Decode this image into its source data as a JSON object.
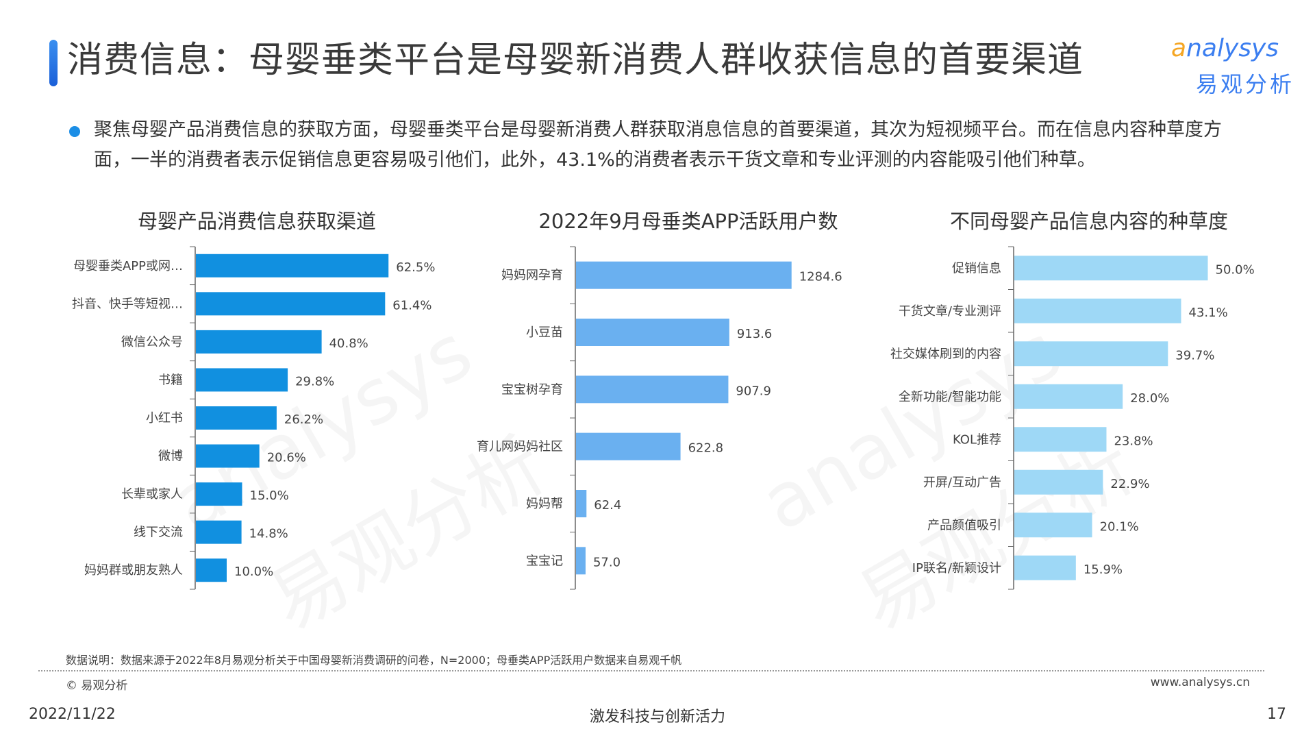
{
  "page": {
    "title": "消费信息：母婴垂类平台是母婴新消费人群收获信息的首要渠道",
    "summary": "聚焦母婴产品消费信息的获取方面，母婴垂类平台是母婴新消费人群获取消息信息的首要渠道，其次为短视频平台。而在信息内容种草度方面，一半的消费者表示促销信息更容易吸引他们，此外，43.1%的消费者表示干货文章和专业评测的内容能吸引他们种草。",
    "logo_en": "nalysys",
    "logo_en_initial": "a",
    "logo_cn": "易观分析",
    "watermark_en": "analysys",
    "watermark_cn": "易观分析",
    "note": "数据说明：数据来源于2022年8月易观分析关于中国母婴新消费调研的问卷，N=2000；母垂类APP活跃用户数据来自易观千帆",
    "copyright": "© 易观分析",
    "url": "www.analysys.cn",
    "date": "2022/11/22",
    "slogan": "激发科技与创新活力",
    "page_number": "17"
  },
  "chart_data": [
    {
      "type": "bar",
      "orientation": "horizontal",
      "title": "母婴产品消费信息获取渠道",
      "color": "#1190e0",
      "categories": [
        "母婴垂类APP或网…",
        "抖音、快手等短视…",
        "微信公众号",
        "书籍",
        "小红书",
        "微博",
        "长辈或家人",
        "线下交流",
        "妈妈群或朋友熟人"
      ],
      "values": [
        62.5,
        61.4,
        40.8,
        29.8,
        26.2,
        20.6,
        15.0,
        14.8,
        10.0
      ],
      "labels": [
        "62.5%",
        "61.4%",
        "40.8%",
        "29.8%",
        "26.2%",
        "20.6%",
        "15.0%",
        "14.8%",
        "10.0%"
      ],
      "xlim": [
        0,
        100
      ]
    },
    {
      "type": "bar",
      "orientation": "horizontal",
      "title": "2022年9月母垂类APP活跃用户数",
      "color": "#6ab0f0",
      "categories": [
        "妈妈网孕育",
        "小豆苗",
        "宝宝树孕育",
        "育儿网妈妈社区",
        "妈妈帮",
        "宝宝记"
      ],
      "values": [
        1284.6,
        913.6,
        907.9,
        622.8,
        62.4,
        57.0
      ],
      "labels": [
        "1284.6",
        "913.6",
        "907.9",
        "622.8",
        "62.4",
        "57.0"
      ],
      "xlim": [
        0,
        2000
      ]
    },
    {
      "type": "bar",
      "orientation": "horizontal",
      "title": "不同母婴产品信息内容的种草度",
      "color": "#9ed8f6",
      "categories": [
        "促销信息",
        "干货文章/专业测评",
        "社交媒体刷到的内容",
        "全新功能/智能功能",
        "KOL推荐",
        "开屏/互动广告",
        "产品颜值吸引",
        "IP联名/新颖设计"
      ],
      "values": [
        50.0,
        43.1,
        39.7,
        28.0,
        23.8,
        22.9,
        20.1,
        15.9
      ],
      "labels": [
        "50.0%",
        "43.1%",
        "39.7%",
        "28.0%",
        "23.8%",
        "22.9%",
        "20.1%",
        "15.9%"
      ],
      "xlim": [
        0,
        80
      ]
    }
  ]
}
